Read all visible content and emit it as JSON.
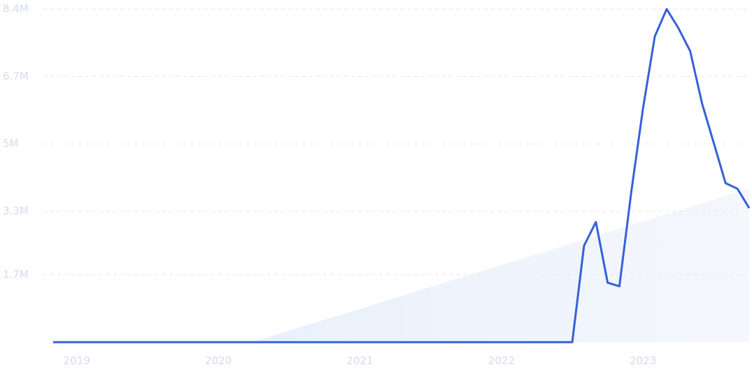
{
  "chart_data": {
    "type": "line",
    "x": [
      2018.833,
      2022.5,
      2022.583,
      2022.667,
      2022.75,
      2022.833,
      2022.917,
      2023.0,
      2023.083,
      2023.167,
      2023.25,
      2023.333,
      2023.417,
      2023.5,
      2023.583,
      2023.667,
      2023.75
    ],
    "values": [
      0,
      0,
      2430000,
      3030000,
      1500000,
      1410000,
      3790000,
      5900000,
      7710000,
      8400000,
      7920000,
      7340000,
      6020000,
      5020000,
      4010000,
      3870000,
      3380000
    ],
    "color": "#3660d8",
    "xlim": [
      2018.833,
      2023.75
    ],
    "xticks": [
      2019,
      2020,
      2021,
      2022,
      2023
    ],
    "ylim": [
      0,
      8400000
    ],
    "yticks": [
      {
        "value": 1700000,
        "label": "1.7M"
      },
      {
        "value": 3300000,
        "label": "3.3M"
      },
      {
        "value": 5000000,
        "label": "5M"
      },
      {
        "value": 6700000,
        "label": "6.7M"
      },
      {
        "value": 8400000,
        "label": "8.4M"
      }
    ],
    "grid": true
  }
}
